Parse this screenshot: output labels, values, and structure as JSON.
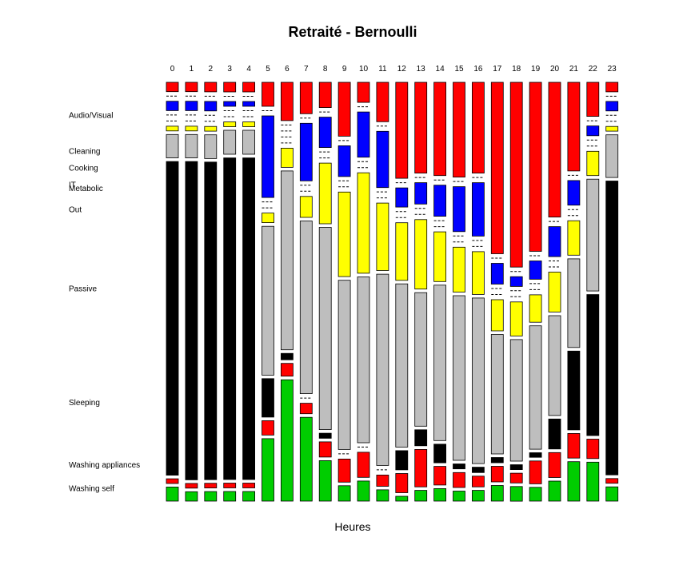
{
  "chart_data": {
    "type": "mosaic",
    "title": "Retraité - Bernoulli",
    "xlabel": "Heures",
    "ylabel": "",
    "categories": [
      "0",
      "1",
      "2",
      "3",
      "4",
      "5",
      "6",
      "7",
      "8",
      "9",
      "10",
      "11",
      "12",
      "13",
      "14",
      "15",
      "16",
      "17",
      "18",
      "19",
      "20",
      "21",
      "22",
      "23"
    ],
    "series": [
      {
        "name": "Audio/Visual",
        "color": "#ff0000",
        "values": [
          2,
          2,
          2,
          2,
          2,
          5,
          6,
          6,
          5,
          7,
          4,
          7,
          20,
          17,
          15,
          19,
          17,
          33,
          38,
          37,
          27,
          18,
          7,
          2
        ]
      },
      {
        "name": "Cleaning",
        "color": "#000000",
        "values": [
          0,
          0,
          0,
          0,
          0,
          0,
          0,
          0,
          0,
          0,
          0,
          0,
          0,
          0,
          0,
          0,
          0,
          0,
          0,
          0,
          0,
          0,
          0,
          0
        ]
      },
      {
        "name": "Cooking",
        "color": "#0000ff",
        "values": [
          2,
          2,
          2,
          1,
          1,
          17,
          0,
          11,
          6,
          4,
          9,
          10,
          4,
          4,
          5,
          9,
          10,
          4,
          2,
          4,
          6,
          5,
          2,
          2
        ]
      },
      {
        "name": "IT",
        "color": "#000000",
        "values": [
          0,
          0,
          0,
          0,
          0,
          0,
          0,
          0,
          0,
          0,
          0,
          0,
          0,
          0,
          0,
          0,
          0,
          0,
          0,
          0,
          0,
          0,
          0,
          0
        ]
      },
      {
        "name": "Metabolic",
        "color": "#000000",
        "values": [
          0,
          0,
          0,
          0,
          0,
          0,
          0,
          0,
          0,
          0,
          0,
          0,
          0,
          0,
          0,
          0,
          0,
          0,
          0,
          0,
          0,
          0,
          0,
          0
        ]
      },
      {
        "name": "Out",
        "color": "#ffff00",
        "values": [
          1,
          1,
          1,
          1,
          1,
          2,
          3,
          4,
          12,
          11,
          20,
          12,
          12,
          13,
          8,
          9,
          8,
          6,
          7,
          6,
          8,
          7,
          5,
          1
        ]
      },
      {
        "name": "Passive",
        "color": "#bebebe",
        "values": [
          5,
          5,
          5,
          5,
          5,
          31,
          28,
          33,
          40,
          22,
          33,
          34,
          34,
          25,
          25,
          33,
          31,
          23,
          25,
          27,
          20,
          18,
          23,
          9
        ]
      },
      {
        "name": "Sleeping",
        "color": "#000000",
        "values": [
          67,
          68,
          67,
          67,
          67,
          8,
          1,
          0,
          1,
          0,
          0,
          0,
          4,
          3,
          3,
          1,
          1,
          1,
          1,
          1,
          6,
          16,
          29,
          62
        ]
      },
      {
        "name": "Washing appliances",
        "color": "#ff0000",
        "values": [
          1,
          1,
          1,
          1,
          1,
          3,
          2,
          2,
          3,
          3,
          5,
          2,
          4,
          7,
          3,
          3,
          2,
          3,
          2,
          5,
          5,
          5,
          4,
          1
        ]
      },
      {
        "name": "Washing self",
        "color": "#00cd00",
        "values": [
          3,
          2,
          2,
          2,
          2,
          13,
          19,
          16,
          8,
          2,
          4,
          2,
          1,
          2,
          2,
          2,
          2,
          3,
          3,
          3,
          4,
          8,
          8,
          3
        ]
      }
    ],
    "grid": false,
    "legend": "none"
  }
}
